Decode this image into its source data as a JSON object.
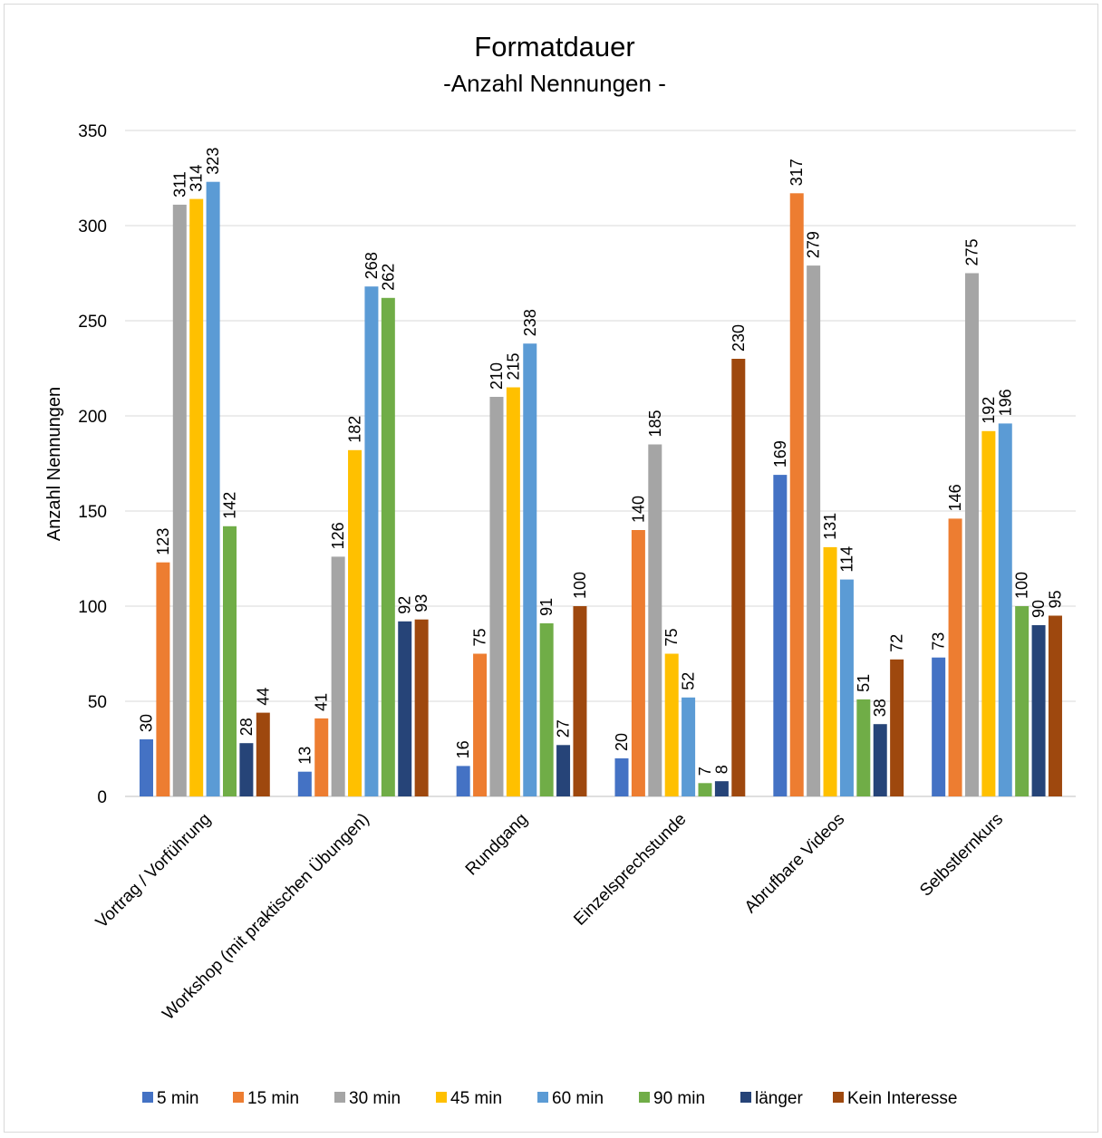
{
  "chart_data": {
    "type": "bar",
    "title": "Formatdauer",
    "subtitle": "-Anzahl Nennungen -",
    "xlabel": "",
    "ylabel": "Anzahl Nennungen",
    "ylim": [
      0,
      350
    ],
    "yticks": [
      "0",
      "50",
      "100",
      "150",
      "200",
      "250",
      "300",
      "350"
    ],
    "grid": true,
    "legend_position": "bottom",
    "categories": [
      "Vortrag / Vorführung",
      "Workshop (mit praktischen Übungen)",
      "Rundgang",
      "Einzelsprechstunde",
      "Abrufbare Videos",
      "Selbstlernkurs"
    ],
    "series": [
      {
        "name": "5 min",
        "color": "#4472C4",
        "values": [
          30,
          13,
          16,
          20,
          169,
          73
        ]
      },
      {
        "name": "15 min",
        "color": "#ED7D31",
        "values": [
          123,
          41,
          75,
          140,
          317,
          146
        ]
      },
      {
        "name": "30 min",
        "color": "#A5A5A5",
        "values": [
          311,
          126,
          210,
          185,
          279,
          275
        ]
      },
      {
        "name": "45 min",
        "color": "#FFC000",
        "values": [
          314,
          182,
          215,
          75,
          131,
          192
        ]
      },
      {
        "name": "60 min",
        "color": "#5B9BD5",
        "values": [
          323,
          268,
          238,
          52,
          114,
          196
        ]
      },
      {
        "name": "90 min",
        "color": "#70AD47",
        "values": [
          142,
          262,
          91,
          7,
          51,
          100
        ]
      },
      {
        "name": "länger",
        "color": "#264478",
        "values": [
          28,
          92,
          27,
          8,
          38,
          90
        ]
      },
      {
        "name": "Kein Interesse",
        "color": "#9E480E",
        "values": [
          44,
          93,
          100,
          230,
          72,
          95
        ]
      }
    ]
  }
}
